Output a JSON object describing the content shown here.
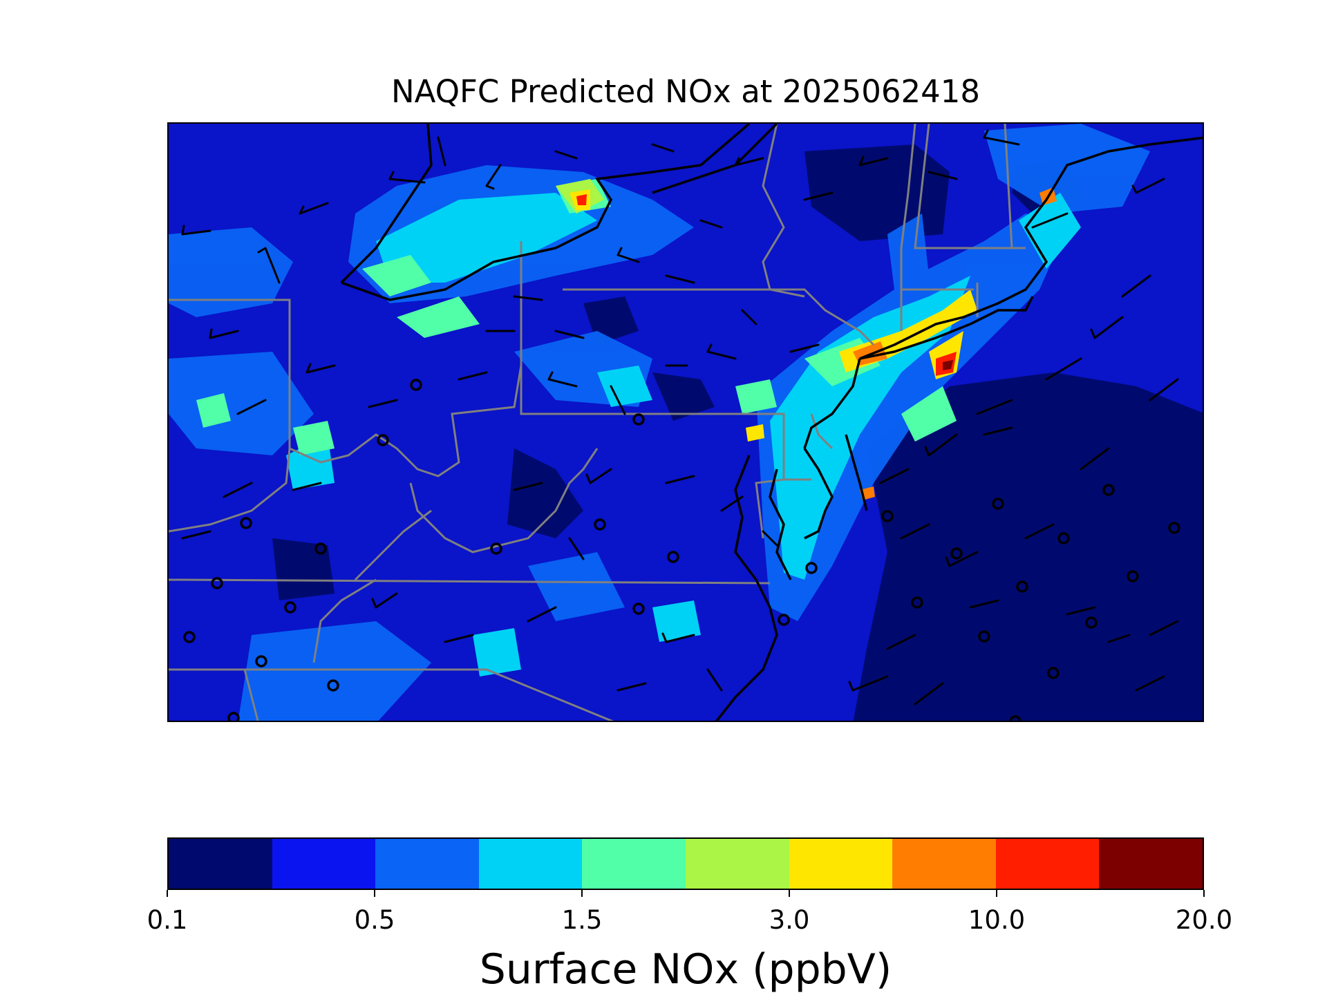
{
  "title": "NAQFC Predicted NOx at 2025062418",
  "map": {
    "type": "filled-grid map with wind barbs",
    "background_color": "#0a14c8",
    "state_border_color": "#808080",
    "coastline_color": "#000000",
    "barb_color": "#000000"
  },
  "colorbar": {
    "label": "Surface NOx (ppbV)",
    "colors": [
      "#000a6e",
      "#0a14f0",
      "#0a64f5",
      "#00d2f5",
      "#50ffa8",
      "#aaf545",
      "#ffe600",
      "#ff7d00",
      "#ff1e00",
      "#7d0000"
    ],
    "ticks": [
      {
        "label": "0.1",
        "index": 0
      },
      {
        "label": "0.5",
        "index": 2
      },
      {
        "label": "1.5",
        "index": 4
      },
      {
        "label": "3.0",
        "index": 6
      },
      {
        "label": "10.0",
        "index": 8
      },
      {
        "label": "20.0",
        "index": 10
      }
    ]
  }
}
